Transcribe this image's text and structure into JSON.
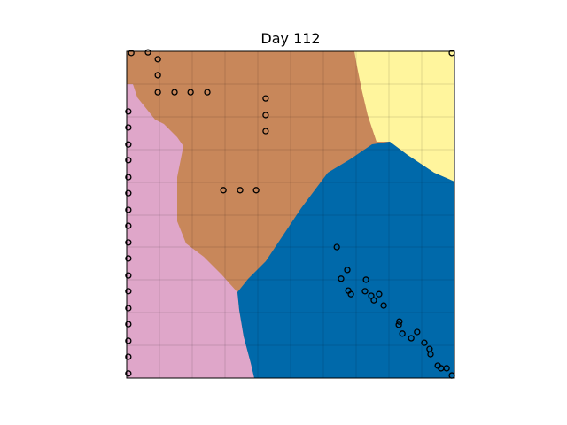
{
  "chart_data": {
    "type": "scatter",
    "title": "Day 112",
    "xlim": [
      0,
      100
    ],
    "ylim": [
      0,
      100
    ],
    "marker_edge_color": "#000000",
    "x": [
      1.4,
      6.5,
      9.5,
      9.5,
      9.5,
      14.6,
      19.5,
      24.6,
      42.4,
      42.4,
      42.4,
      99.2,
      0.5,
      0.5,
      0.5,
      0.5,
      0.5,
      0.5,
      0.5,
      0.5,
      0.5,
      0.5,
      0.5,
      0.5,
      0.5,
      0.5,
      0.5,
      0.5,
      0.5,
      29.5,
      34.6,
      39.5,
      64.1,
      67.3,
      65.4,
      73.0,
      67.6,
      68.4,
      72.7,
      74.6,
      77.0,
      75.4,
      78.4,
      83.2,
      83.0,
      88.6,
      84.1,
      86.8,
      90.8,
      92.4,
      92.7,
      94.9,
      95.9,
      97.6,
      99.2
    ],
    "y": [
      99.5,
      99.7,
      97.6,
      92.7,
      87.5,
      87.5,
      87.5,
      87.5,
      85.6,
      80.5,
      75.6,
      99.5,
      81.6,
      76.7,
      71.5,
      66.7,
      61.5,
      56.6,
      51.5,
      46.6,
      41.5,
      36.6,
      31.4,
      26.6,
      21.4,
      16.5,
      11.4,
      6.5,
      1.4,
      57.5,
      57.5,
      57.5,
      40.1,
      33.1,
      30.4,
      30.1,
      26.8,
      25.7,
      26.6,
      25.2,
      25.7,
      23.8,
      22.2,
      17.3,
      16.3,
      14.1,
      13.6,
      12.2,
      10.8,
      8.9,
      7.3,
      3.8,
      3.0,
      3.0,
      0.8
    ]
  }
}
